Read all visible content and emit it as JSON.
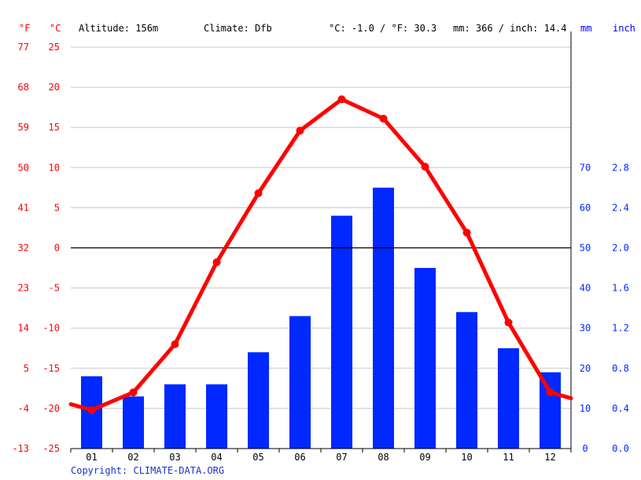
{
  "header": {
    "unit_f": "°F",
    "unit_c": "°C",
    "altitude": "Altitude: 156m",
    "climate": "Climate: Dfb",
    "temp_avg": "°C: -1.0 / °F: 30.3",
    "precip_total": "mm: 366 / inch: 14.4",
    "unit_mm": "mm",
    "unit_inch": "inch"
  },
  "copyright": "Copyright: CLIMATE-DATA.ORG",
  "colors": {
    "temperature": "#ff0000",
    "precipitation": "#0028ff",
    "grid": "#c8c8c8",
    "zero_line": "#000000",
    "copyright": "#1a33cc"
  },
  "chart_data": {
    "type": "bar",
    "categories": [
      "01",
      "02",
      "03",
      "04",
      "05",
      "06",
      "07",
      "08",
      "09",
      "10",
      "11",
      "12"
    ],
    "series": [
      {
        "type": "bar",
        "values": [
          18,
          13,
          16,
          16,
          24,
          33,
          58,
          65,
          45,
          34,
          25,
          19
        ]
      },
      {
        "type": "line",
        "values": [
          -20.2,
          -18.0,
          -12.0,
          -1.8,
          6.8,
          14.6,
          18.5,
          16.1,
          10.1,
          1.9,
          -9.3,
          -18.0
        ]
      }
    ],
    "temp_axis_c": {
      "ylim": [
        -25,
        25
      ],
      "ticks": [
        25,
        20,
        15,
        10,
        5,
        0,
        -5,
        -10,
        -15,
        -20,
        -25
      ]
    },
    "temp_axis_f": {
      "ticks": [
        77,
        68,
        59,
        50,
        41,
        32,
        23,
        14,
        5,
        -4,
        -13
      ]
    },
    "precip_axis_mm": {
      "ylim": [
        0,
        100
      ],
      "ticks": [
        70,
        60,
        50,
        40,
        30,
        20,
        10,
        0
      ]
    },
    "precip_axis_inch": {
      "ticks": [
        "2.8",
        "2.4",
        "2.0",
        "1.6",
        "1.2",
        "0.8",
        "0.4",
        "0.0"
      ]
    },
    "grid": true
  }
}
